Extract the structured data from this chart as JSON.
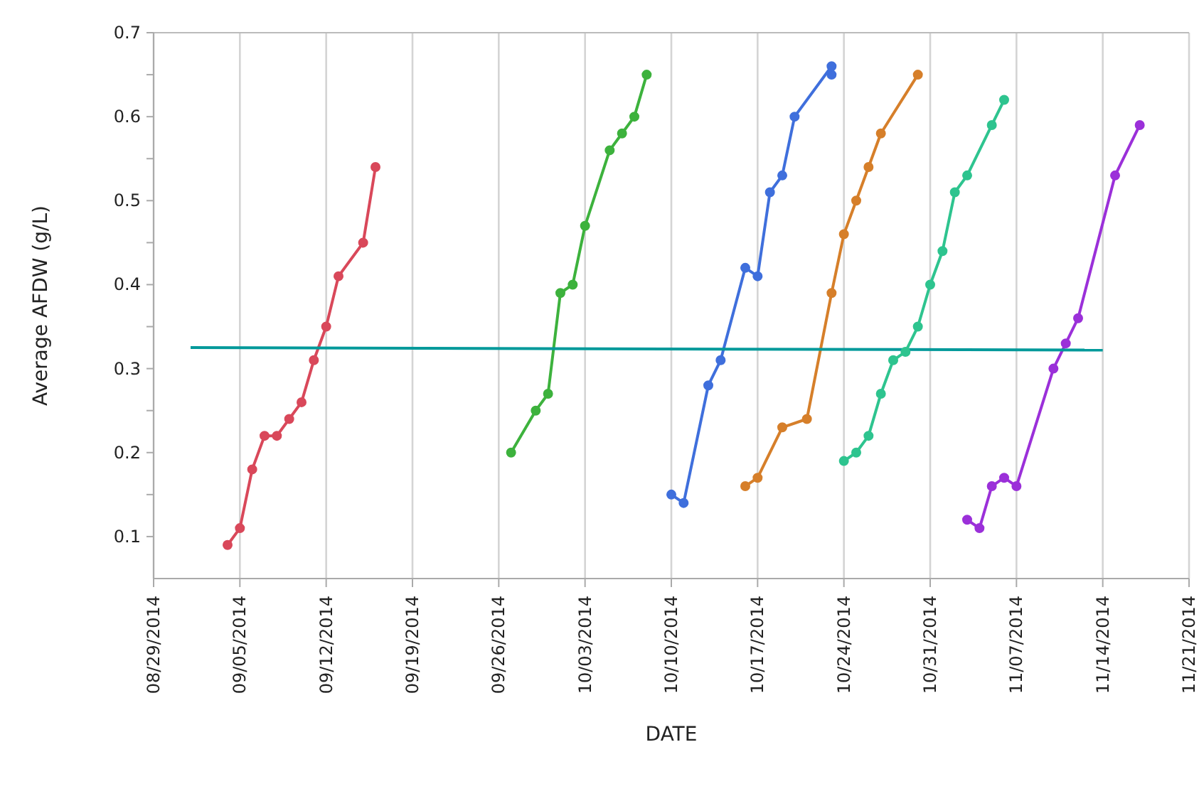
{
  "chart_data": {
    "type": "line",
    "xlabel": "DATE",
    "ylabel": "Average AFDW (g/L)",
    "marker": "circle",
    "grid": "x",
    "xlim": [
      "2014-08-29",
      "2014-11-21"
    ],
    "xticks": [
      {
        "value": "2014-08-29",
        "label": "08/29/2014"
      },
      {
        "value": "2014-09-05",
        "label": "09/05/2014"
      },
      {
        "value": "2014-09-12",
        "label": "09/12/2014"
      },
      {
        "value": "2014-09-19",
        "label": "09/19/2014"
      },
      {
        "value": "2014-09-26",
        "label": "09/26/2014"
      },
      {
        "value": "2014-10-03",
        "label": "10/03/2014"
      },
      {
        "value": "2014-10-10",
        "label": "10/10/2014"
      },
      {
        "value": "2014-10-17",
        "label": "10/17/2014"
      },
      {
        "value": "2014-10-24",
        "label": "10/24/2014"
      },
      {
        "value": "2014-10-31",
        "label": "10/31/2014"
      },
      {
        "value": "2014-11-07",
        "label": "11/07/2014"
      },
      {
        "value": "2014-11-14",
        "label": "11/14/2014"
      },
      {
        "value": "2014-11-21",
        "label": "11/21/2014"
      }
    ],
    "ylim": [
      0.05,
      0.7
    ],
    "yticks": [
      0.1,
      {
        "value": 0.15,
        "label": null
      },
      0.2,
      {
        "value": 0.25,
        "label": null
      },
      0.3,
      {
        "value": 0.35,
        "label": null
      },
      0.4,
      {
        "value": 0.45,
        "label": null
      },
      0.5,
      {
        "value": 0.55,
        "label": null
      },
      0.6,
      {
        "value": 0.65,
        "label": null
      },
      0.7
    ],
    "series": [
      {
        "color": "#d9485a",
        "x": [
          "2014-09-04",
          "2014-09-05",
          "2014-09-06",
          "2014-09-07",
          "2014-09-08",
          "2014-09-09",
          "2014-09-10",
          "2014-09-11",
          "2014-09-12",
          "2014-09-13",
          "2014-09-15",
          "2014-09-16"
        ],
        "values": [
          0.09,
          0.11,
          0.18,
          0.22,
          0.22,
          0.24,
          0.26,
          0.31,
          0.35,
          0.41,
          0.45,
          0.54
        ]
      },
      {
        "color": "#3db23d",
        "x": [
          "2014-09-27",
          "2014-09-29",
          "2014-09-30",
          "2014-10-01",
          "2014-10-02",
          "2014-10-03",
          "2014-10-05",
          "2014-10-06",
          "2014-10-07",
          "2014-10-08"
        ],
        "values": [
          0.2,
          0.25,
          0.27,
          0.39,
          0.4,
          0.47,
          0.56,
          0.58,
          0.6,
          0.65
        ]
      },
      {
        "color": "#3f6fdc",
        "x": [
          "2014-10-10",
          "2014-10-11",
          "2014-10-13",
          "2014-10-14",
          "2014-10-16",
          "2014-10-17",
          "2014-10-18",
          "2014-10-19",
          "2014-10-20",
          "2014-10-23",
          "2014-10-23"
        ],
        "values": [
          0.15,
          0.14,
          0.28,
          0.31,
          0.42,
          0.41,
          0.51,
          0.53,
          0.6,
          0.66,
          0.65
        ]
      },
      {
        "color": "#d67f2a",
        "x": [
          "2014-10-16",
          "2014-10-17",
          "2014-10-19",
          "2014-10-21",
          "2014-10-23",
          "2014-10-24",
          "2014-10-25",
          "2014-10-26",
          "2014-10-27",
          "2014-10-30"
        ],
        "values": [
          0.16,
          0.17,
          0.23,
          0.24,
          0.39,
          0.46,
          0.5,
          0.54,
          0.58,
          0.65
        ]
      },
      {
        "color": "#2ec48f",
        "x": [
          "2014-10-24",
          "2014-10-25",
          "2014-10-26",
          "2014-10-27",
          "2014-10-28",
          "2014-10-29",
          "2014-10-30",
          "2014-10-31",
          "2014-11-01",
          "2014-11-02",
          "2014-11-03",
          "2014-11-05",
          "2014-11-06"
        ],
        "values": [
          0.19,
          0.2,
          0.22,
          0.27,
          0.31,
          0.32,
          0.35,
          0.4,
          0.44,
          0.51,
          0.53,
          0.59,
          0.62
        ]
      },
      {
        "color": "#9b30d9",
        "x": [
          "2014-11-03",
          "2014-11-04",
          "2014-11-05",
          "2014-11-06",
          "2014-11-07",
          "2014-11-10",
          "2014-11-11",
          "2014-11-12",
          "2014-11-15",
          "2014-11-17"
        ],
        "values": [
          0.12,
          0.11,
          0.16,
          0.17,
          0.16,
          0.3,
          0.33,
          0.36,
          0.53,
          0.59
        ]
      },
      {
        "type": "line",
        "marker": "none",
        "color": "#00999a",
        "x": [
          "2014-09-01",
          "2014-11-14"
        ],
        "values": [
          0.325,
          0.322
        ]
      }
    ]
  }
}
